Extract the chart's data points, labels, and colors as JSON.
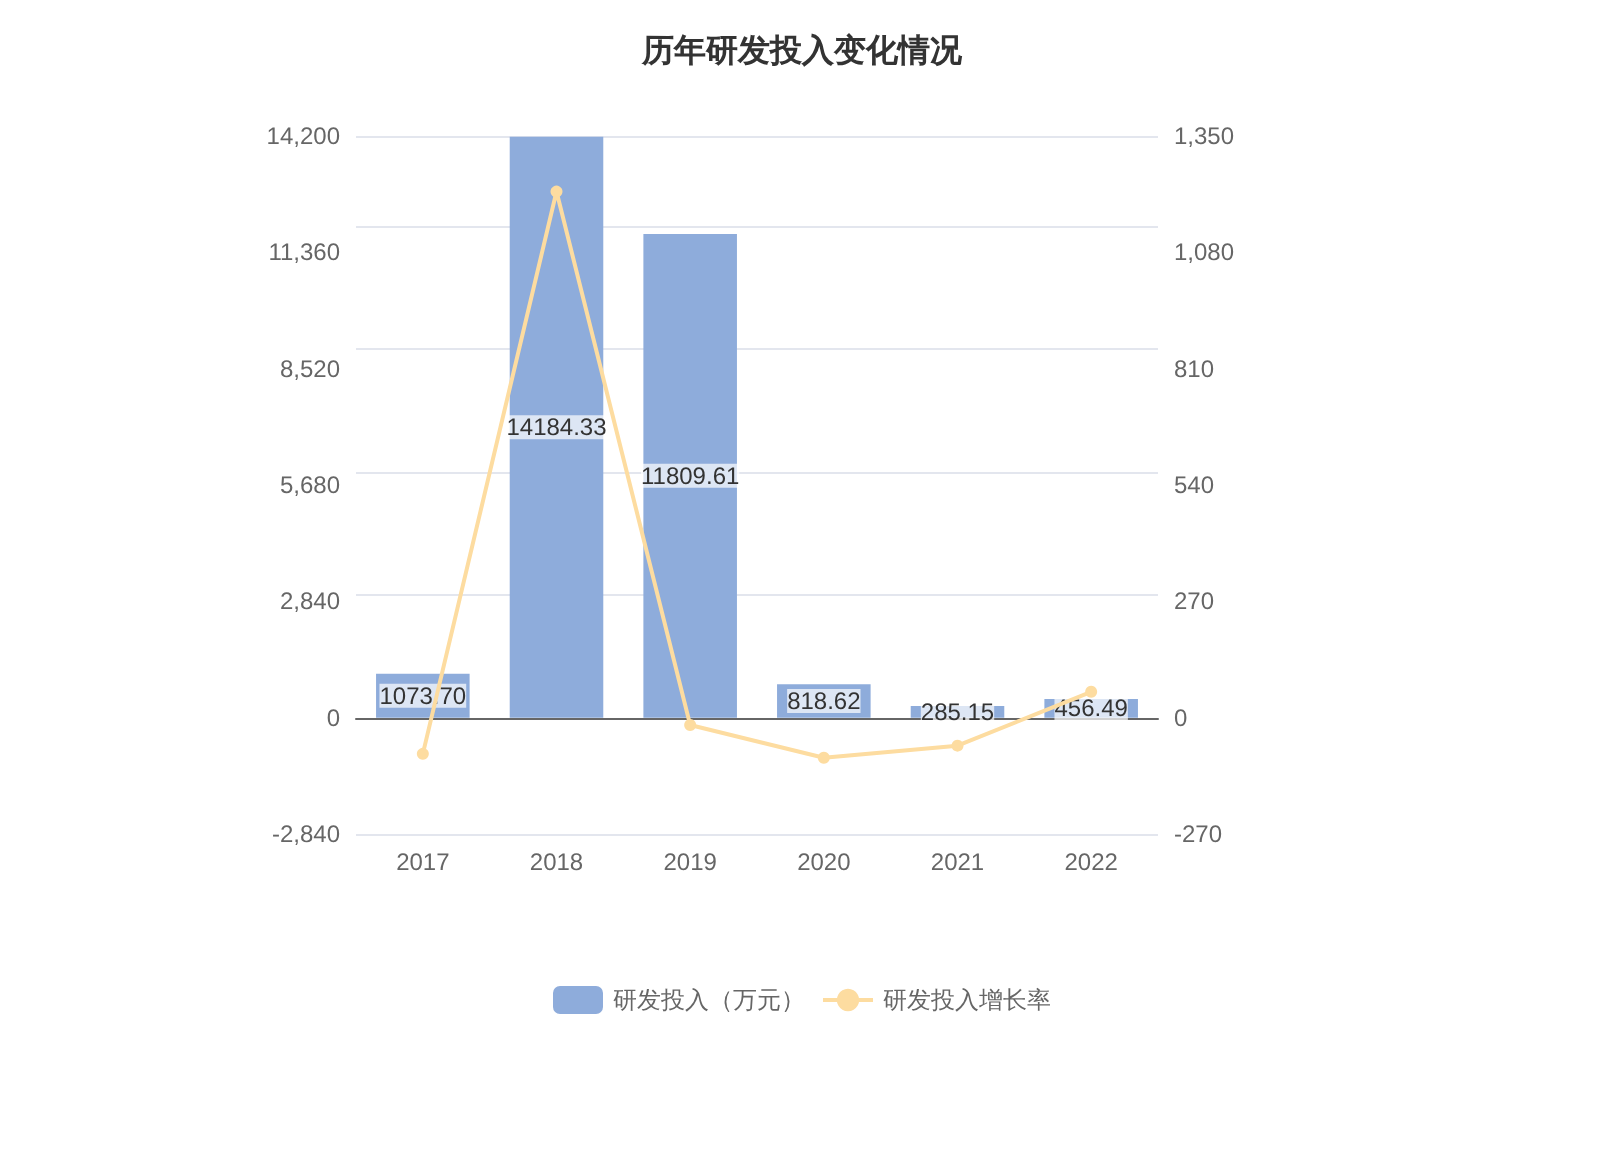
{
  "chart_data": {
    "type": "bar",
    "title": "历年研发投入变化情况",
    "categories": [
      "2017",
      "2018",
      "2019",
      "2020",
      "2021",
      "2022"
    ],
    "series": [
      {
        "name": "研发投入（万元）",
        "color": "#8eacdb",
        "values": [
          1073.7,
          14184.33,
          11809.61,
          818.62,
          285.15,
          456.49
        ],
        "value_labels": [
          "1073.70",
          "14184.33",
          "11809.61",
          "818.62",
          "285.15",
          "456.49"
        ]
      },
      {
        "name": "研发投入增长率",
        "type": "line",
        "axis": "y2",
        "color": "#fddca0",
        "marker": "circle",
        "values": [
          -84,
          1221,
          -17,
          -93,
          -65,
          60
        ]
      }
    ],
    "ylim": [
      -2840,
      14200
    ],
    "yticks": [
      {
        "value": -2840,
        "label": "-2,840"
      },
      0,
      {
        "value": 2840,
        "label": "2,840"
      },
      {
        "value": 5680,
        "label": "5,680"
      },
      {
        "value": 8520,
        "label": "8,520"
      },
      {
        "value": 11360,
        "label": "11,360"
      },
      {
        "value": 14200,
        "label": "14,200"
      }
    ],
    "y2lim": [
      -270,
      1350
    ],
    "y2ticks": [
      -270,
      0,
      270,
      540,
      810,
      {
        "value": 1080,
        "label": "1,080"
      },
      {
        "value": 1350,
        "label": "1,350"
      }
    ],
    "grid": "y",
    "legend": "bottom"
  }
}
